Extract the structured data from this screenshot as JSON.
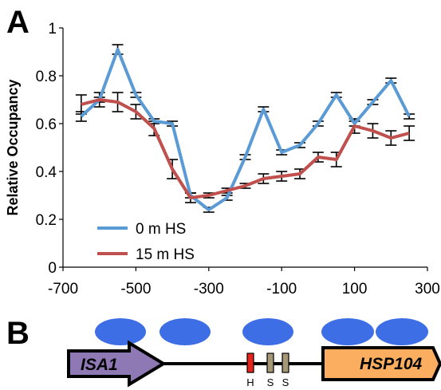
{
  "panel_a_label": "A",
  "panel_b_label": "B",
  "chart_data": {
    "type": "line",
    "title": "",
    "xlabel": "",
    "ylabel": "Relative Occupancy",
    "xlim": [
      -700,
      300
    ],
    "ylim": [
      0,
      1
    ],
    "x_ticks": [
      "-700",
      "-500",
      "-300",
      "-100",
      "100",
      "300"
    ],
    "y_ticks": [
      "0",
      "0.2",
      "0.4",
      "0.6",
      "0.8",
      "1"
    ],
    "x_tick_values": [
      -700,
      -500,
      -300,
      -100,
      100,
      300
    ],
    "y_tick_values": [
      0,
      0.2,
      0.4,
      0.6,
      0.8,
      1
    ],
    "legend_position": "bottom-left",
    "grid": false,
    "series": [
      {
        "name": "0 m HS",
        "color": "#5b9bd5",
        "x": [
          -650,
          -600,
          -550,
          -500,
          -450,
          -400,
          -350,
          -300,
          -250,
          -200,
          -150,
          -100,
          -50,
          0,
          50,
          100,
          150,
          200,
          250
        ],
        "values": [
          0.63,
          0.7,
          0.91,
          0.72,
          0.61,
          0.6,
          0.3,
          0.24,
          0.29,
          0.46,
          0.66,
          0.48,
          0.51,
          0.6,
          0.72,
          0.6,
          0.69,
          0.78,
          0.63
        ],
        "errors": [
          0.02,
          0.01,
          0.02,
          0.01,
          0.01,
          0.01,
          0.01,
          0.01,
          0.01,
          0.01,
          0.01,
          0.01,
          0.01,
          0.01,
          0.01,
          0.01,
          0.01,
          0.01,
          0.01
        ]
      },
      {
        "name": "15 m HS",
        "color": "#c0504d",
        "x": [
          -650,
          -600,
          -550,
          -500,
          -450,
          -400,
          -350,
          -300,
          -250,
          -200,
          -150,
          -100,
          -50,
          0,
          50,
          100,
          150,
          200,
          250
        ],
        "values": [
          0.68,
          0.7,
          0.69,
          0.65,
          0.58,
          0.41,
          0.29,
          0.3,
          0.32,
          0.34,
          0.37,
          0.38,
          0.39,
          0.46,
          0.45,
          0.59,
          0.57,
          0.54,
          0.56
        ],
        "errors": [
          0.04,
          0.03,
          0.04,
          0.03,
          0.03,
          0.04,
          0.02,
          0.01,
          0.01,
          0.01,
          0.02,
          0.02,
          0.02,
          0.02,
          0.03,
          0.03,
          0.03,
          0.03,
          0.03
        ]
      }
    ]
  },
  "diagram": {
    "left_gene": "ISA1",
    "right_gene": "HSP104",
    "site_labels": [
      "H",
      "S",
      "S"
    ],
    "nucleosome_count": 5,
    "colors": {
      "nucleosome": "#3d6ee6",
      "isa1_arrow": "#8f79b5",
      "hsp104_arrow": "#fbae5f",
      "h_site": "#e8231b",
      "s_site": "#a69877"
    }
  }
}
